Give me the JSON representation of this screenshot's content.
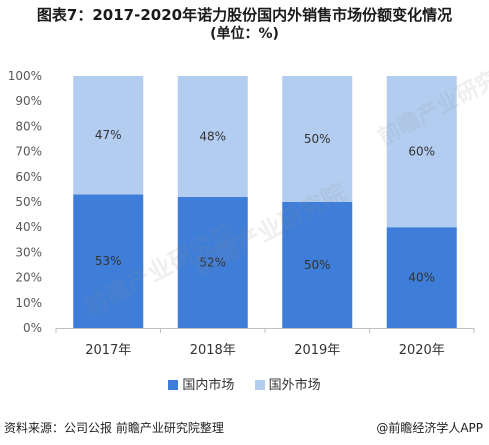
{
  "title_line1": "图表7：2017-2020年诺力股份国内外销售市场份额变化情况",
  "title_line2": "(单位：%)",
  "source": "资料来源：公司公报 前瞻产业研究院整理",
  "brand": "@前瞻经济学人APP",
  "watermark": "前瞻产业研究院",
  "colors": {
    "domestic": "#3e7ed9",
    "foreign": "#b3cdf0",
    "axis": "#bfbfbf"
  },
  "chart_data": {
    "type": "bar",
    "stacked": true,
    "percent": true,
    "categories": [
      "2017年",
      "2018年",
      "2019年",
      "2020年"
    ],
    "series": [
      {
        "name": "国内市场",
        "values": [
          53,
          52,
          50,
          40
        ]
      },
      {
        "name": "国外市场",
        "values": [
          47,
          48,
          50,
          60
        ]
      }
    ],
    "ylim": [
      0,
      100
    ],
    "yticks": [
      "0%",
      "10%",
      "20%",
      "30%",
      "40%",
      "50%",
      "60%",
      "70%",
      "80%",
      "90%",
      "100%"
    ],
    "grid": false,
    "legend": "bottom"
  }
}
